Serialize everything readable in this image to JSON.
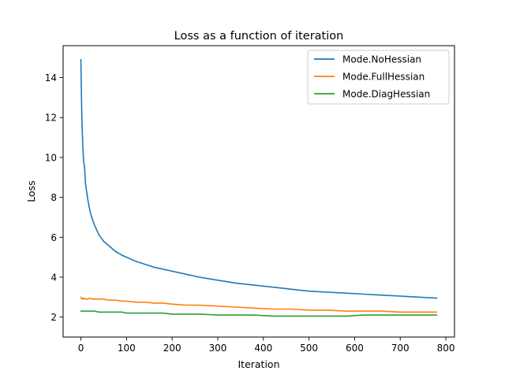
{
  "chart_data": {
    "type": "line",
    "title": "Loss as a function of iteration",
    "xlabel": "Iteration",
    "ylabel": "Loss",
    "xlim": [
      -39,
      819
    ],
    "ylim": [
      1.0,
      15.6
    ],
    "xticks": [
      0,
      100,
      200,
      300,
      400,
      500,
      600,
      700,
      800
    ],
    "yticks": [
      2,
      4,
      6,
      8,
      10,
      12,
      14
    ],
    "grid": false,
    "legend_position": "top-right",
    "x": [
      0,
      2,
      4,
      6,
      8,
      10,
      15,
      20,
      25,
      30,
      40,
      50,
      60,
      75,
      90,
      100,
      120,
      140,
      160,
      180,
      200,
      230,
      260,
      300,
      340,
      380,
      420,
      460,
      500,
      540,
      580,
      620,
      660,
      700,
      740,
      780
    ],
    "series": [
      {
        "name": "Mode.NoHessian",
        "color": "#1f77b4",
        "values": [
          14.9,
          12.0,
          10.6,
          9.8,
          9.5,
          8.7,
          7.9,
          7.3,
          6.9,
          6.6,
          6.1,
          5.8,
          5.6,
          5.3,
          5.1,
          5.0,
          4.8,
          4.65,
          4.5,
          4.4,
          4.3,
          4.15,
          4.0,
          3.85,
          3.7,
          3.6,
          3.5,
          3.4,
          3.3,
          3.25,
          3.2,
          3.15,
          3.1,
          3.05,
          3.0,
          2.95
        ]
      },
      {
        "name": "Mode.FullHessian",
        "color": "#ff7f0e",
        "values": [
          3.0,
          2.9,
          2.95,
          2.9,
          2.95,
          2.9,
          2.9,
          2.95,
          2.9,
          2.9,
          2.9,
          2.9,
          2.85,
          2.85,
          2.8,
          2.8,
          2.75,
          2.75,
          2.7,
          2.7,
          2.65,
          2.6,
          2.6,
          2.55,
          2.5,
          2.45,
          2.4,
          2.4,
          2.35,
          2.35,
          2.3,
          2.3,
          2.3,
          2.25,
          2.25,
          2.25
        ]
      },
      {
        "name": "Mode.DiagHessian",
        "color": "#2ca02c",
        "values": [
          2.3,
          2.3,
          2.3,
          2.3,
          2.3,
          2.3,
          2.3,
          2.3,
          2.3,
          2.3,
          2.25,
          2.25,
          2.25,
          2.25,
          2.25,
          2.2,
          2.2,
          2.2,
          2.2,
          2.2,
          2.15,
          2.15,
          2.15,
          2.1,
          2.1,
          2.1,
          2.05,
          2.05,
          2.05,
          2.05,
          2.05,
          2.1,
          2.1,
          2.1,
          2.1,
          2.1
        ]
      }
    ]
  }
}
